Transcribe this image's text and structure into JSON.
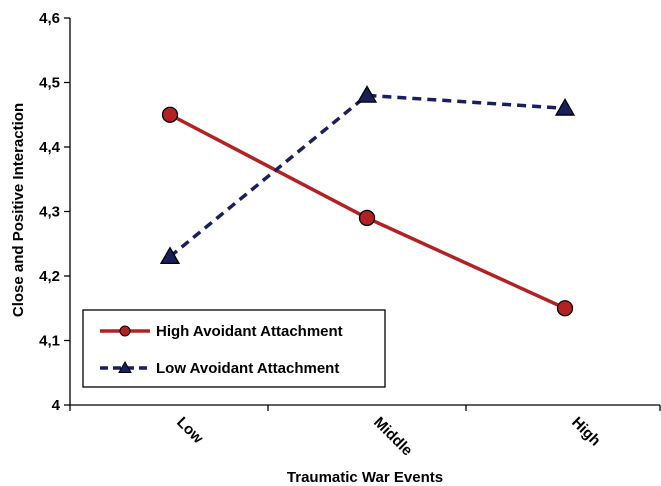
{
  "chart_data": {
    "type": "line",
    "categories": [
      "Low",
      "Middle",
      "High"
    ],
    "xlabel": "Traumatic War Events",
    "ylabel": "Close and Positive Interaction",
    "ylim": [
      4,
      4.6
    ],
    "yticks": [
      "4",
      "4,1",
      "4,2",
      "4,3",
      "4,4",
      "4,5",
      "4,6"
    ],
    "ytick_values": [
      4.0,
      4.1,
      4.2,
      4.3,
      4.4,
      4.5,
      4.6
    ],
    "grid": false,
    "legend_position": "bottom-left",
    "series": [
      {
        "name": "High Avoidant Attachment",
        "values": [
          4.45,
          4.29,
          4.15
        ],
        "color": "#b22222",
        "line_style": "solid",
        "marker": "circle"
      },
      {
        "name": "Low Avoidant Attachment",
        "values": [
          4.23,
          4.48,
          4.46
        ],
        "color": "#1a1f5c",
        "line_style": "dashed",
        "marker": "triangle"
      }
    ]
  }
}
